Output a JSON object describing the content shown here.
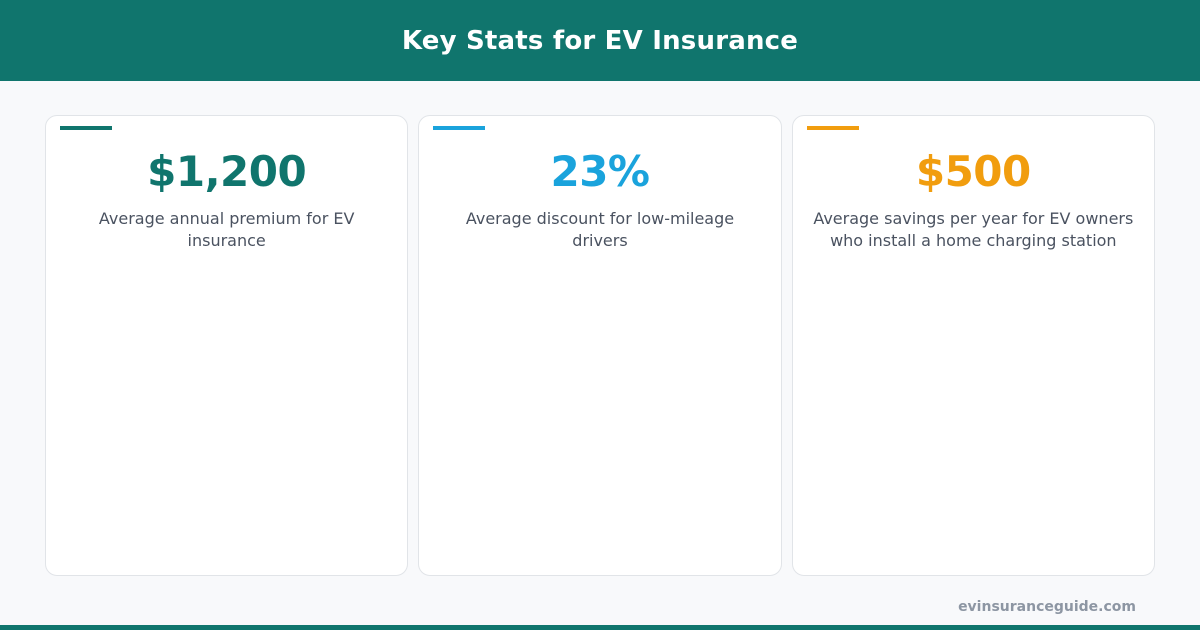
{
  "header": {
    "title": "Key Stats for EV Insurance"
  },
  "stats": [
    {
      "value": "$1,200",
      "description": "Average annual premium for EV insurance",
      "color": "#10756d"
    },
    {
      "value": "23%",
      "description": "Average discount for low-mileage drivers",
      "color": "#1aa3dc"
    },
    {
      "value": "$500",
      "description": "Average savings per year for EV owners who install a home charging station",
      "color": "#f19d0e"
    }
  ],
  "footer": {
    "url": "evinsuranceguide.com",
    "bar_color": "#10756d"
  }
}
